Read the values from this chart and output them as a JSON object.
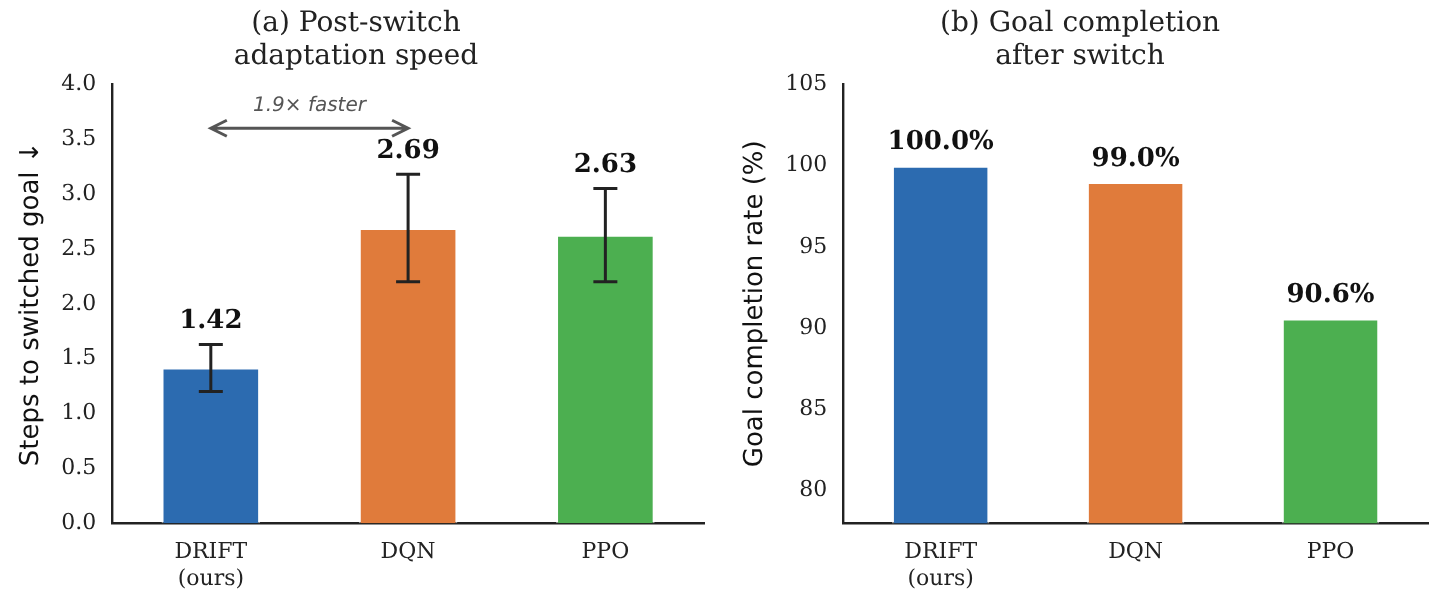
{
  "chart_data": [
    {
      "type": "bar",
      "title": "(a) Post-switch\nadaptation speed",
      "ylabel": "Steps to switched goal ↓",
      "categories": [
        "DRIFT\n(ours)",
        "DQN",
        "PPO"
      ],
      "values": [
        1.42,
        2.69,
        2.63
      ],
      "colors": [
        "#2c6bb0",
        "#e07b3b",
        "#4caf50"
      ],
      "errors": [
        [
          1.2,
          1.63
        ],
        [
          2.2,
          3.18
        ],
        [
          2.2,
          3.05
        ]
      ],
      "ylim": [
        0,
        4
      ],
      "yticks": [
        {
          "value": 0,
          "label": "0.0"
        },
        {
          "value": 0.5,
          "label": "0.5"
        },
        {
          "value": 1,
          "label": "1.0"
        },
        {
          "value": 1.5,
          "label": "1.5"
        },
        {
          "value": 2,
          "label": "2.0"
        },
        {
          "value": 2.5,
          "label": "2.5"
        },
        {
          "value": 3,
          "label": "3.0"
        },
        {
          "value": 3.5,
          "label": "3.5"
        },
        {
          "value": 4,
          "label": "4.0"
        }
      ],
      "data_labels": true,
      "grid": false,
      "legend": false,
      "annotations": [
        "1.9× faster"
      ]
    },
    {
      "type": "bar",
      "title": "(b) Goal completion\nafter switch",
      "ylabel": "Goal completion rate (%)",
      "categories": [
        "DRIFT\n(ours)",
        "DQN",
        "PPO"
      ],
      "values": [
        100.0,
        99.0,
        90.6
      ],
      "colors": [
        "#2c6bb0",
        "#e07b3b",
        "#4caf50"
      ],
      "value_labels": [
        "100.0%",
        "99.0%",
        "90.6%"
      ],
      "ylim": [
        78,
        105
      ],
      "yticks": [
        80,
        85,
        90,
        95,
        100,
        105
      ],
      "grid": false,
      "legend": false
    }
  ]
}
